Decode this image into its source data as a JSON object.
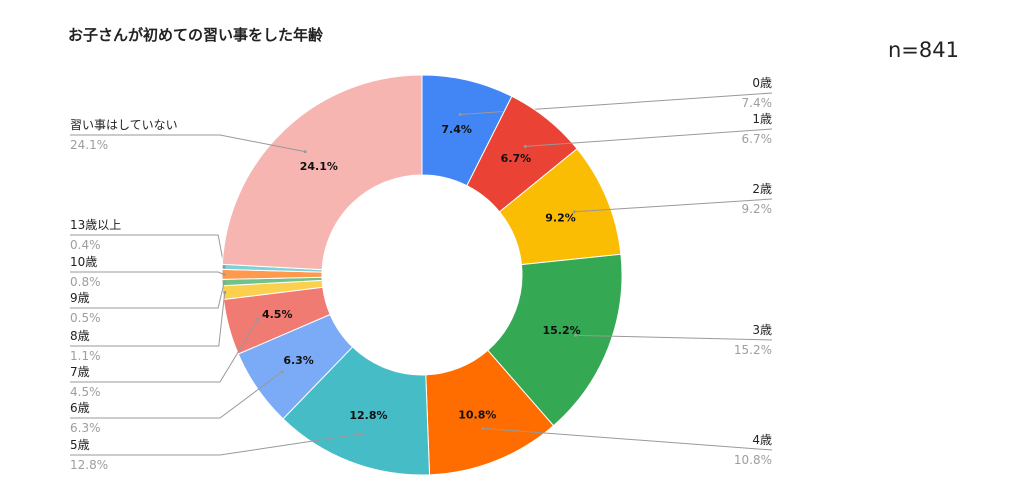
{
  "sample_size": "n=841",
  "chart_data": {
    "type": "pie",
    "donut": true,
    "title": "お子さんが初めての習い事をした年齢",
    "legend": "none",
    "slices": [
      {
        "label": "0歳",
        "value": 7.4,
        "display": "7.4%",
        "color": "#4285f4"
      },
      {
        "label": "1歳",
        "value": 6.7,
        "display": "6.7%",
        "color": "#ea4335"
      },
      {
        "label": "2歳",
        "value": 9.2,
        "display": "9.2%",
        "color": "#fbbc04"
      },
      {
        "label": "3歳",
        "value": 15.2,
        "display": "15.2%",
        "color": "#34a853"
      },
      {
        "label": "4歳",
        "value": 10.8,
        "display": "10.8%",
        "color": "#ff6d01"
      },
      {
        "label": "5歳",
        "value": 12.8,
        "display": "12.8%",
        "color": "#46bdc6"
      },
      {
        "label": "6歳",
        "value": 6.3,
        "display": "6.3%",
        "color": "#7baaf7"
      },
      {
        "label": "7歳",
        "value": 4.5,
        "display": "4.5%",
        "color": "#f07b72"
      },
      {
        "label": "8歳",
        "value": 1.1,
        "display": "1.1%",
        "color": "#fcd04f"
      },
      {
        "label": "9歳",
        "value": 0.5,
        "display": "0.5%",
        "color": "#71c287"
      },
      {
        "label": "10歳",
        "value": 0.8,
        "display": "0.8%",
        "color": "#ff994d"
      },
      {
        "label": "13歳以上",
        "value": 0.4,
        "display": "0.4%",
        "color": "#7ed1d7"
      },
      {
        "label": "習い事はしていない",
        "value": 24.1,
        "display": "24.1%",
        "color": "#f6b5b1"
      }
    ]
  }
}
